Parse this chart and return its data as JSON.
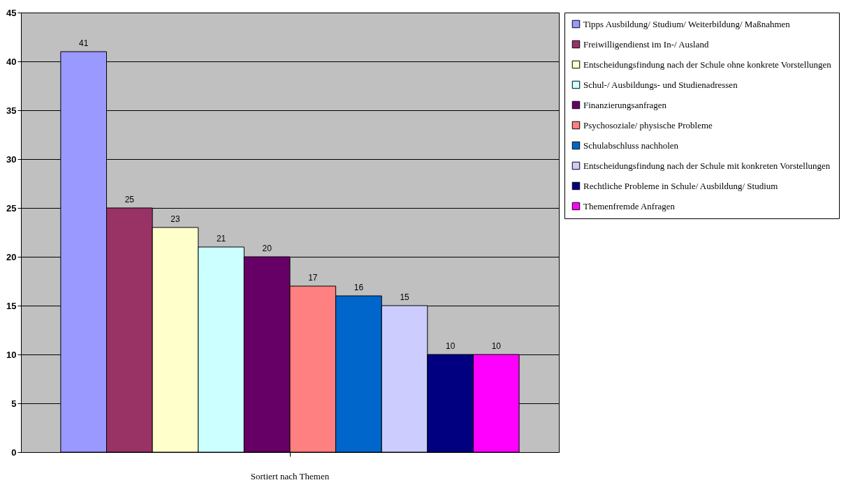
{
  "chart_data": {
    "type": "bar",
    "categories": [
      "Sortiert nach Themen"
    ],
    "series": [
      {
        "name": "Tipps Ausbildung/ Studium/ Weiterbildung/ Maßnahmen",
        "color": "#9999ff",
        "values": [
          41
        ]
      },
      {
        "name": "Freiwilligendienst im In-/ Ausland",
        "color": "#993366",
        "values": [
          25
        ]
      },
      {
        "name": "Entscheidungsfindung nach der Schule ohne konkrete Vorstellungen",
        "color": "#ffffcc",
        "values": [
          23
        ]
      },
      {
        "name": "Schul-/ Ausbildungs- und Studienadressen",
        "color": "#ccffff",
        "values": [
          21
        ]
      },
      {
        "name": "Finanzierungsanfragen",
        "color": "#660066",
        "values": [
          20
        ]
      },
      {
        "name": "Psychosoziale/ physische Probleme",
        "color": "#ff8080",
        "values": [
          17
        ]
      },
      {
        "name": "Schulabschluss nachholen",
        "color": "#0066cc",
        "values": [
          16
        ]
      },
      {
        "name": "Entscheidungsfindung nach der Schule mit konkreten Vorstellungen",
        "color": "#ccccff",
        "values": [
          15
        ]
      },
      {
        "name": "Rechtliche Probleme in Schule/ Ausbildung/ Studium",
        "color": "#000080",
        "values": [
          10
        ]
      },
      {
        "name": "Themenfremde Anfragen",
        "color": "#ff00ff",
        "values": [
          10
        ]
      }
    ],
    "ylim": [
      0,
      45
    ],
    "yticks": [
      0,
      5,
      10,
      15,
      20,
      25,
      30,
      35,
      40,
      45
    ],
    "grid": "y",
    "legend": "right",
    "data_labels": true
  }
}
